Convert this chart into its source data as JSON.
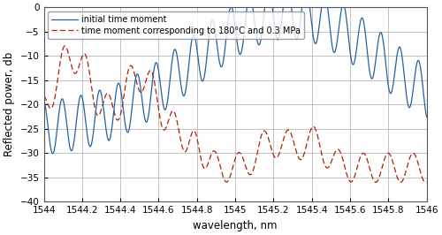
{
  "xlim": [
    1544.0,
    1546.0
  ],
  "ylim": [
    -40,
    0
  ],
  "xlabel": "wavelength, nm",
  "ylabel": "Reflected power, db",
  "xticks": [
    1544.0,
    1544.2,
    1544.4,
    1544.6,
    1544.8,
    1545.0,
    1545.2,
    1545.4,
    1545.6,
    1545.8,
    1546.0
  ],
  "yticks": [
    0,
    -5,
    -10,
    -15,
    -20,
    -25,
    -30,
    -35,
    -40
  ],
  "legend1": "initial time moment",
  "legend2": "time moment corresponding to 180°C and 0.3 MPa",
  "line1_color": "#2461A0",
  "line2_color": "#B22000",
  "background_color": "#FFFFFF",
  "grid_color": "#AAAAAA",
  "figsize": [
    5.0,
    2.66
  ],
  "dpi": 100
}
